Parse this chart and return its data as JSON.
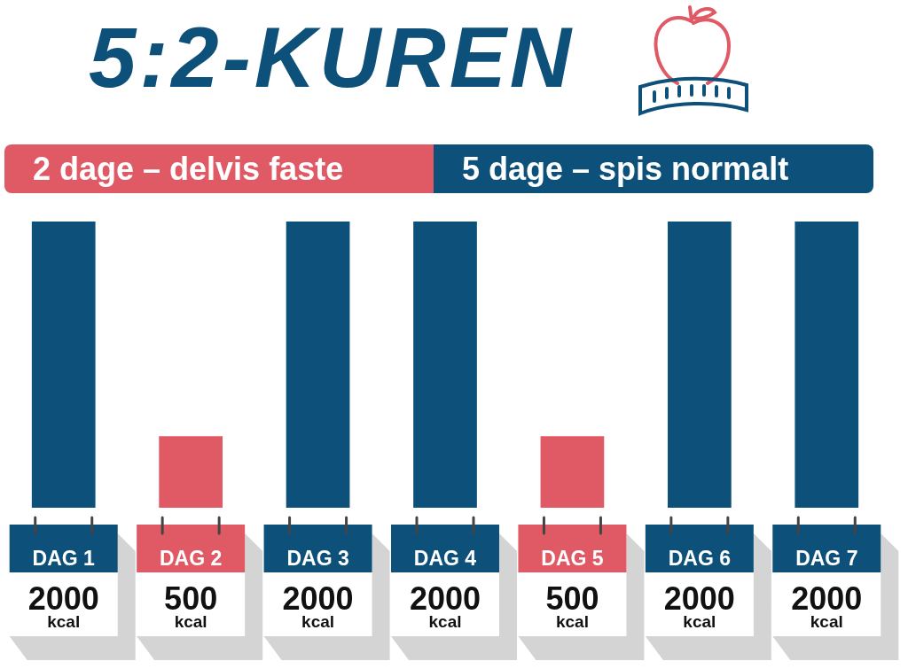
{
  "chart_data": {
    "type": "bar",
    "title": "5:2-KUREN",
    "stacked": true,
    "legend": "top",
    "data_labels": true,
    "categories": [
      "DAG 1",
      "DAG 2",
      "DAG 3",
      "DAG 4",
      "DAG 5",
      "DAG 6",
      "DAG 7"
    ],
    "series": [
      {
        "name": "2 dage – delvis faste",
        "color": "#e05a66",
        "values": [
          null,
          500,
          null,
          null,
          500,
          null,
          null
        ],
        "value_labels": [
          null,
          "500 kcal",
          null,
          null,
          "500 kcal",
          null,
          null
        ]
      },
      {
        "name": "5 dage – spis normalt",
        "color": "#0d5079",
        "values": [
          2000,
          null,
          2000,
          2000,
          null,
          2000,
          2000
        ],
        "value_labels": [
          "2000 kcal",
          null,
          "2000 kcal",
          "2000 kcal",
          null,
          "2000 kcal",
          "2000 kcal"
        ]
      }
    ]
  }
}
